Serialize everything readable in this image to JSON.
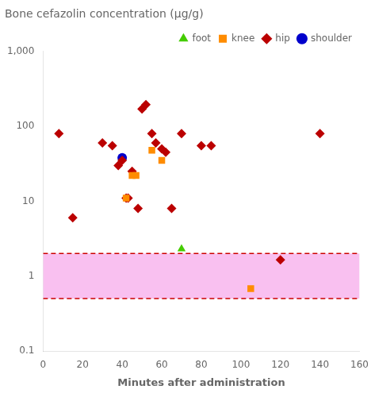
{
  "chart_data": {
    "type": "scatter",
    "title": "Bone cefazolin concentration (µg/g)",
    "xlabel": "Minutes after administration",
    "xlim": [
      0,
      160
    ],
    "xticks": [
      0,
      20,
      40,
      60,
      80,
      100,
      120,
      140,
      160
    ],
    "ylim": [
      0.1,
      1000
    ],
    "yticks": [
      0.1,
      1,
      10,
      100,
      {
        "value": 1000,
        "label": "1,000"
      }
    ],
    "log": "y",
    "grid": false,
    "legend": "upper right",
    "band": {
      "from": 0.5,
      "to": 2.0,
      "color": "#F9C0F0",
      "line_color": "#CC0000",
      "line_style": "dashed"
    },
    "series": [
      {
        "name": "foot",
        "color": "#44CC00",
        "marker": "triangle",
        "x": [
          70
        ],
        "values": [
          2.3
        ]
      },
      {
        "name": "knee",
        "color": "#FF8C00",
        "marker": "square",
        "x": [
          42,
          45,
          47,
          55,
          60,
          105
        ],
        "values": [
          11,
          22,
          22,
          48,
          35,
          0.68
        ]
      },
      {
        "name": "hip",
        "color": "#BB0000",
        "marker": "diamond",
        "x": [
          8,
          15,
          30,
          35,
          38,
          40,
          42,
          43,
          45,
          48,
          50,
          52,
          55,
          57,
          60,
          62,
          65,
          70,
          80,
          85,
          120,
          140
        ],
        "values": [
          80,
          6,
          60,
          55,
          30,
          35,
          11,
          11,
          25,
          8,
          170,
          195,
          80,
          60,
          50,
          45,
          8,
          80,
          55,
          55,
          1.65,
          80
        ]
      },
      {
        "name": "shoulder",
        "color": "#0000CC",
        "marker": "circle",
        "x": [
          40
        ],
        "values": [
          38
        ]
      }
    ]
  }
}
